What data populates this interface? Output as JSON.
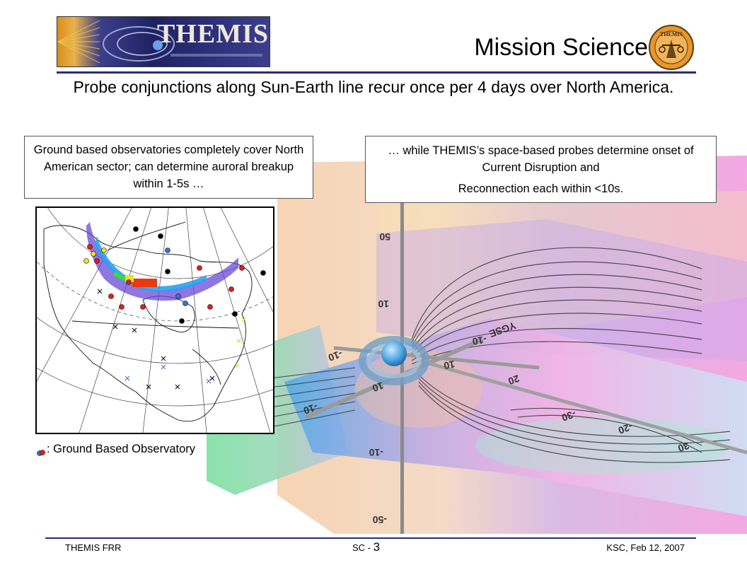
{
  "header": {
    "logo_text": "THEMIS",
    "title": "Mission Science",
    "seal_text": "THEMIS"
  },
  "subtitle": "Probe conjunctions along Sun-Earth line recur once per 4 days over North America.",
  "callouts": {
    "ground": "Ground based observatories completely cover North American sector; can determine auroral breakup within 1-5s …",
    "space_line1": "… while THEMIS’s space-based probes determine onset of Current Disruption and",
    "space_line2": "Reconnection each within <10s."
  },
  "legend": {
    "label": ": Ground Based Observatory"
  },
  "simulation": {
    "axis_labels": [
      "50",
      "10",
      "-10",
      "-50",
      "-10",
      "10",
      "-10",
      "20",
      "-30",
      "-20",
      "30",
      "10",
      "-10",
      "YGSE"
    ]
  },
  "footer": {
    "left": "THEMIS FRR",
    "mid_prefix": "SC - ",
    "mid_num": "3",
    "right": "KSC, Feb 12, 2007"
  },
  "colors": {
    "accent_rule": "#2b2b7c",
    "observatory_red": "#e0201a",
    "observatory_blue": "#3a6fe0",
    "observatory_yellow": "#f2e21b"
  }
}
